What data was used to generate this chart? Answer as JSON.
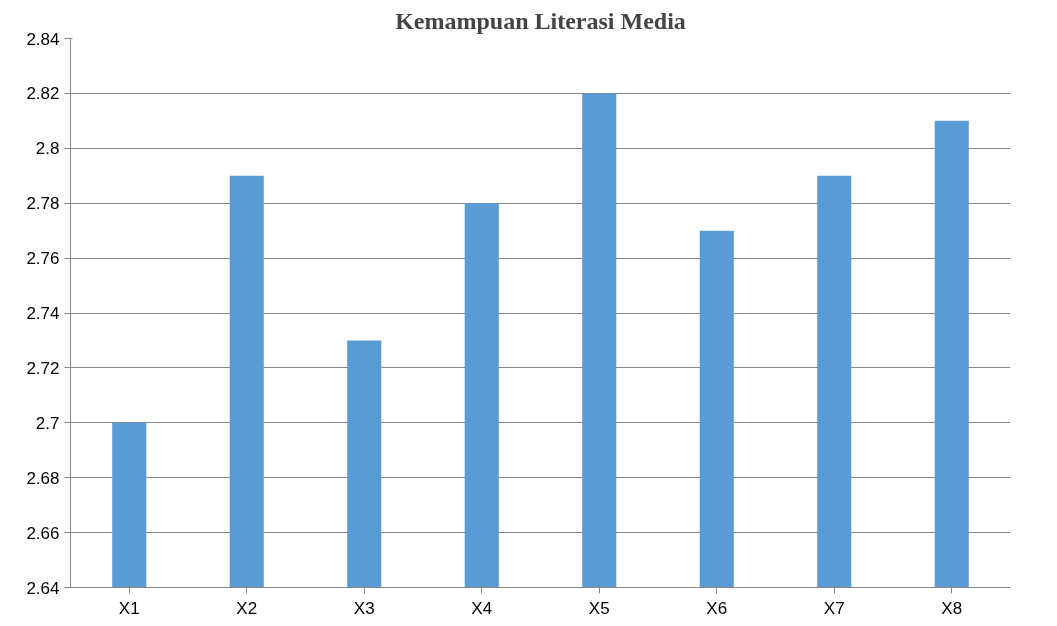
{
  "chart_data": {
    "type": "bar",
    "title": "Kemampuan Literasi Media",
    "categories": [
      "X1",
      "X2",
      "X3",
      "X4",
      "X5",
      "X6",
      "X7",
      "X8"
    ],
    "values": [
      2.7,
      2.79,
      2.73,
      2.78,
      2.82,
      2.77,
      2.79,
      2.81
    ],
    "color": "#5b9bd5",
    "ylim": [
      2.64,
      2.84
    ],
    "yticks": [
      2.64,
      2.66,
      2.68,
      2.7,
      2.72,
      2.74,
      2.76,
      2.78,
      2.8,
      2.82,
      2.84
    ],
    "grid": "y"
  }
}
